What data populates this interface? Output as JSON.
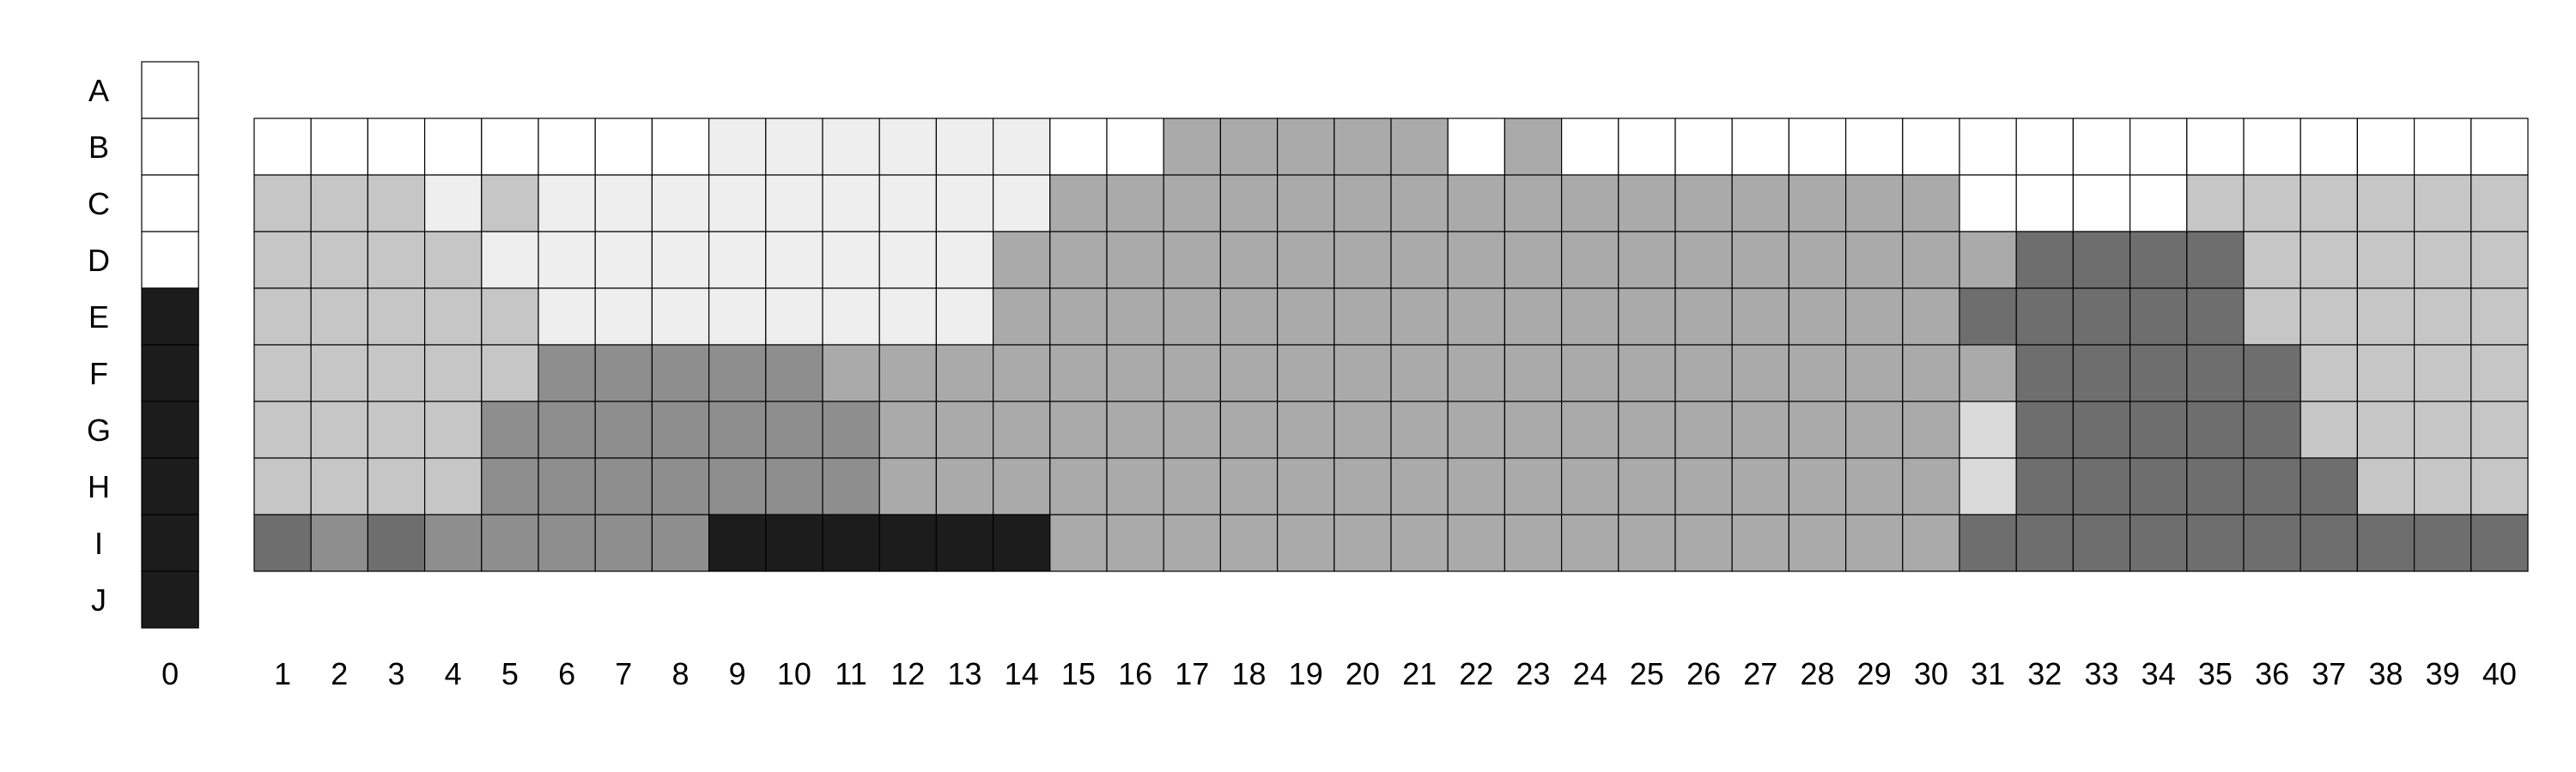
{
  "chart_data": {
    "type": "heatmap",
    "title": "",
    "xlabel": "",
    "ylabel": "",
    "grid": true,
    "rows": [
      "A",
      "B",
      "C",
      "D",
      "E",
      "F",
      "G",
      "H",
      "I",
      "J"
    ],
    "columns": [
      "1",
      "2",
      "3",
      "4",
      "5",
      "6",
      "7",
      "8",
      "9",
      "10",
      "11",
      "12",
      "13",
      "14",
      "15",
      "16",
      "17",
      "18",
      "19",
      "20",
      "21",
      "22",
      "23",
      "24",
      "25",
      "26",
      "27",
      "28",
      "29",
      "30",
      "31",
      "32",
      "33",
      "34",
      "35",
      "36",
      "37",
      "38",
      "39",
      "40"
    ],
    "palette": {
      "0": "#ffffff",
      "1": "#eeeeee",
      "2": "#dadada",
      "3": "#c6c6c6",
      "4": "#aaaaaa",
      "5": "#8e8e8e",
      "6": "#6e6e6e",
      "7": "#1c1c1c"
    },
    "column0": {
      "label": "0",
      "values": [
        0,
        0,
        0,
        0,
        7,
        7,
        7,
        7,
        7,
        7
      ]
    },
    "grid_rows": {
      "B": [
        0,
        0,
        0,
        0,
        0,
        0,
        0,
        0,
        1,
        1,
        1,
        1,
        1,
        1,
        0,
        0,
        4,
        4,
        4,
        4,
        4,
        0,
        4,
        0,
        0,
        0,
        0,
        0,
        0,
        0,
        0,
        0,
        0,
        0,
        0,
        0,
        0,
        0,
        0,
        0
      ],
      "C": [
        3,
        3,
        3,
        1,
        3,
        1,
        1,
        1,
        1,
        1,
        1,
        1,
        1,
        1,
        4,
        4,
        4,
        4,
        4,
        4,
        4,
        4,
        4,
        4,
        4,
        4,
        4,
        4,
        4,
        4,
        0,
        0,
        0,
        0,
        3,
        3,
        3,
        3,
        3,
        3
      ],
      "D": [
        3,
        3,
        3,
        3,
        1,
        1,
        1,
        1,
        1,
        1,
        1,
        1,
        1,
        4,
        4,
        4,
        4,
        4,
        4,
        4,
        4,
        4,
        4,
        4,
        4,
        4,
        4,
        4,
        4,
        4,
        4,
        6,
        6,
        6,
        6,
        3,
        3,
        3,
        3,
        3
      ],
      "E": [
        3,
        3,
        3,
        3,
        3,
        1,
        1,
        1,
        1,
        1,
        1,
        1,
        1,
        4,
        4,
        4,
        4,
        4,
        4,
        4,
        4,
        4,
        4,
        4,
        4,
        4,
        4,
        4,
        4,
        4,
        6,
        6,
        6,
        6,
        6,
        3,
        3,
        3,
        3,
        3
      ],
      "F": [
        3,
        3,
        3,
        3,
        3,
        5,
        5,
        5,
        5,
        5,
        4,
        4,
        4,
        4,
        4,
        4,
        4,
        4,
        4,
        4,
        4,
        4,
        4,
        4,
        4,
        4,
        4,
        4,
        4,
        4,
        4,
        6,
        6,
        6,
        6,
        6,
        3,
        3,
        3,
        3
      ],
      "G": [
        3,
        3,
        3,
        3,
        5,
        5,
        5,
        5,
        5,
        5,
        5,
        4,
        4,
        4,
        4,
        4,
        4,
        4,
        4,
        4,
        4,
        4,
        4,
        4,
        4,
        4,
        4,
        4,
        4,
        4,
        2,
        6,
        6,
        6,
        6,
        6,
        3,
        3,
        3,
        3
      ],
      "H": [
        3,
        3,
        3,
        3,
        5,
        5,
        5,
        5,
        5,
        5,
        5,
        4,
        4,
        4,
        4,
        4,
        4,
        4,
        4,
        4,
        4,
        4,
        4,
        4,
        4,
        4,
        4,
        4,
        4,
        4,
        2,
        6,
        6,
        6,
        6,
        6,
        6,
        3,
        3,
        3
      ],
      "I": [
        6,
        5,
        6,
        5,
        5,
        5,
        5,
        5,
        7,
        7,
        7,
        7,
        7,
        7,
        4,
        4,
        4,
        4,
        4,
        4,
        4,
        4,
        4,
        4,
        4,
        4,
        4,
        4,
        4,
        4,
        6,
        6,
        6,
        6,
        6,
        6,
        6,
        6,
        6,
        6
      ]
    }
  }
}
